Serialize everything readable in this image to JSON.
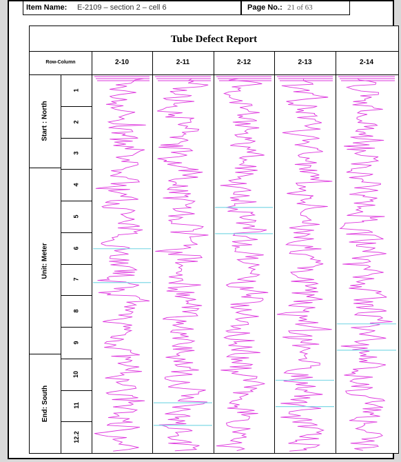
{
  "header": {
    "item_name_label": "Item Name:",
    "item_name_value": "E-2109 – section 2 – cell 6",
    "page_label": "Page No.:",
    "page_value": "21 of 63"
  },
  "report": {
    "title": "Tube Defect Report",
    "row_column_header": "Row-Column",
    "columns": [
      {
        "label": "2-10",
        "markers": [
          0.46,
          0.55
        ]
      },
      {
        "label": "2-11",
        "markers": [
          0.87,
          0.93
        ]
      },
      {
        "label": "2-12",
        "markers": [
          0.35,
          0.42
        ]
      },
      {
        "label": "2-13",
        "markers": [
          0.81,
          0.88
        ]
      },
      {
        "label": "2-14",
        "markers": [
          0.66,
          0.73
        ]
      }
    ],
    "groups": [
      "Start : North",
      "Unit: Meter",
      "End: South"
    ],
    "rows": [
      "1",
      "2",
      "3",
      "4",
      "5",
      "6",
      "7",
      "8",
      "9",
      "10",
      "11",
      "12.2"
    ]
  },
  "colors": {
    "trace": "#dd33dd",
    "marker": "#7fd8e6",
    "grid": "#000000",
    "background": "#d9d9d9"
  }
}
